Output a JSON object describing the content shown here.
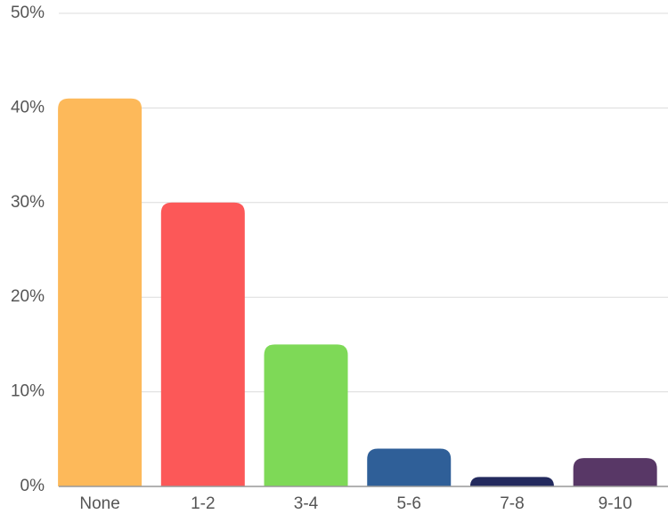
{
  "chart_data": {
    "type": "bar",
    "categories": [
      "None",
      "1-2",
      "3-4",
      "5-6",
      "7-8",
      "9-10"
    ],
    "values": [
      41,
      30,
      15,
      4,
      1,
      3
    ],
    "colors": [
      "#fdb95a",
      "#fc5858",
      "#7ed957",
      "#2f5f98",
      "#232a5e",
      "#583766"
    ],
    "ylim": [
      0,
      50
    ],
    "yticks": [
      {
        "value": 0,
        "label": "0%"
      },
      {
        "value": 10,
        "label": "10%"
      },
      {
        "value": 20,
        "label": "20%"
      },
      {
        "value": 30,
        "label": "30%"
      },
      {
        "value": 40,
        "label": "40%"
      },
      {
        "value": 50,
        "label": "50%"
      }
    ],
    "grid": true
  }
}
